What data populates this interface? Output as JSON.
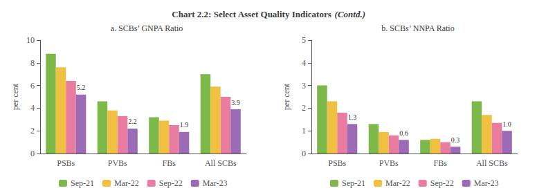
{
  "title": "Chart 2.2: Select Asset Quality Indicators",
  "subtitle": "(Contd.)",
  "chart_data": [
    {
      "type": "bar",
      "title": "a. SCBs’ GNPA Ratio",
      "categories": [
        "PSBs",
        "PVBs",
        "FBs",
        "All SCBs"
      ],
      "ylabel": "per cent",
      "series": [
        {
          "name": "Sep-21",
          "color": "#7db84a",
          "values": [
            8.8,
            4.6,
            3.2,
            7.0
          ]
        },
        {
          "name": "Mar-22",
          "color": "#f0c040",
          "values": [
            7.6,
            3.8,
            2.9,
            5.9
          ]
        },
        {
          "name": "Sep-22",
          "color": "#e87da0",
          "values": [
            6.4,
            3.3,
            2.5,
            5.0
          ]
        },
        {
          "name": "Mar-23",
          "color": "#9b6bb5",
          "values": [
            5.2,
            2.2,
            1.9,
            3.9
          ],
          "data_labels": true
        }
      ],
      "ylim": [
        0,
        10
      ],
      "yticks": [
        0,
        2,
        4,
        6,
        8,
        10
      ],
      "grid": false,
      "legend": "bottom"
    },
    {
      "type": "bar",
      "title": "b. SCBs’ NNPA Ratio",
      "categories": [
        "PSBs",
        "PVBs",
        "FBs",
        "All SCBs"
      ],
      "ylabel": "per cent",
      "series": [
        {
          "name": "Sep-21",
          "color": "#7db84a",
          "values": [
            3.0,
            1.3,
            0.6,
            2.3
          ]
        },
        {
          "name": "Mar-22",
          "color": "#f0c040",
          "values": [
            2.3,
            0.95,
            0.65,
            1.7
          ]
        },
        {
          "name": "Sep-22",
          "color": "#e87da0",
          "values": [
            1.8,
            0.8,
            0.5,
            1.35
          ]
        },
        {
          "name": "Mar-23",
          "color": "#9b6bb5",
          "values": [
            1.3,
            0.6,
            0.3,
            1.0
          ],
          "value_labels": [
            "1.3",
            "0.6",
            "0.3",
            "1.0"
          ],
          "data_labels": true
        }
      ],
      "ylim": [
        0,
        5
      ],
      "yticks": [
        0,
        1,
        2,
        3,
        4,
        5
      ],
      "grid": false,
      "legend": "bottom"
    }
  ]
}
